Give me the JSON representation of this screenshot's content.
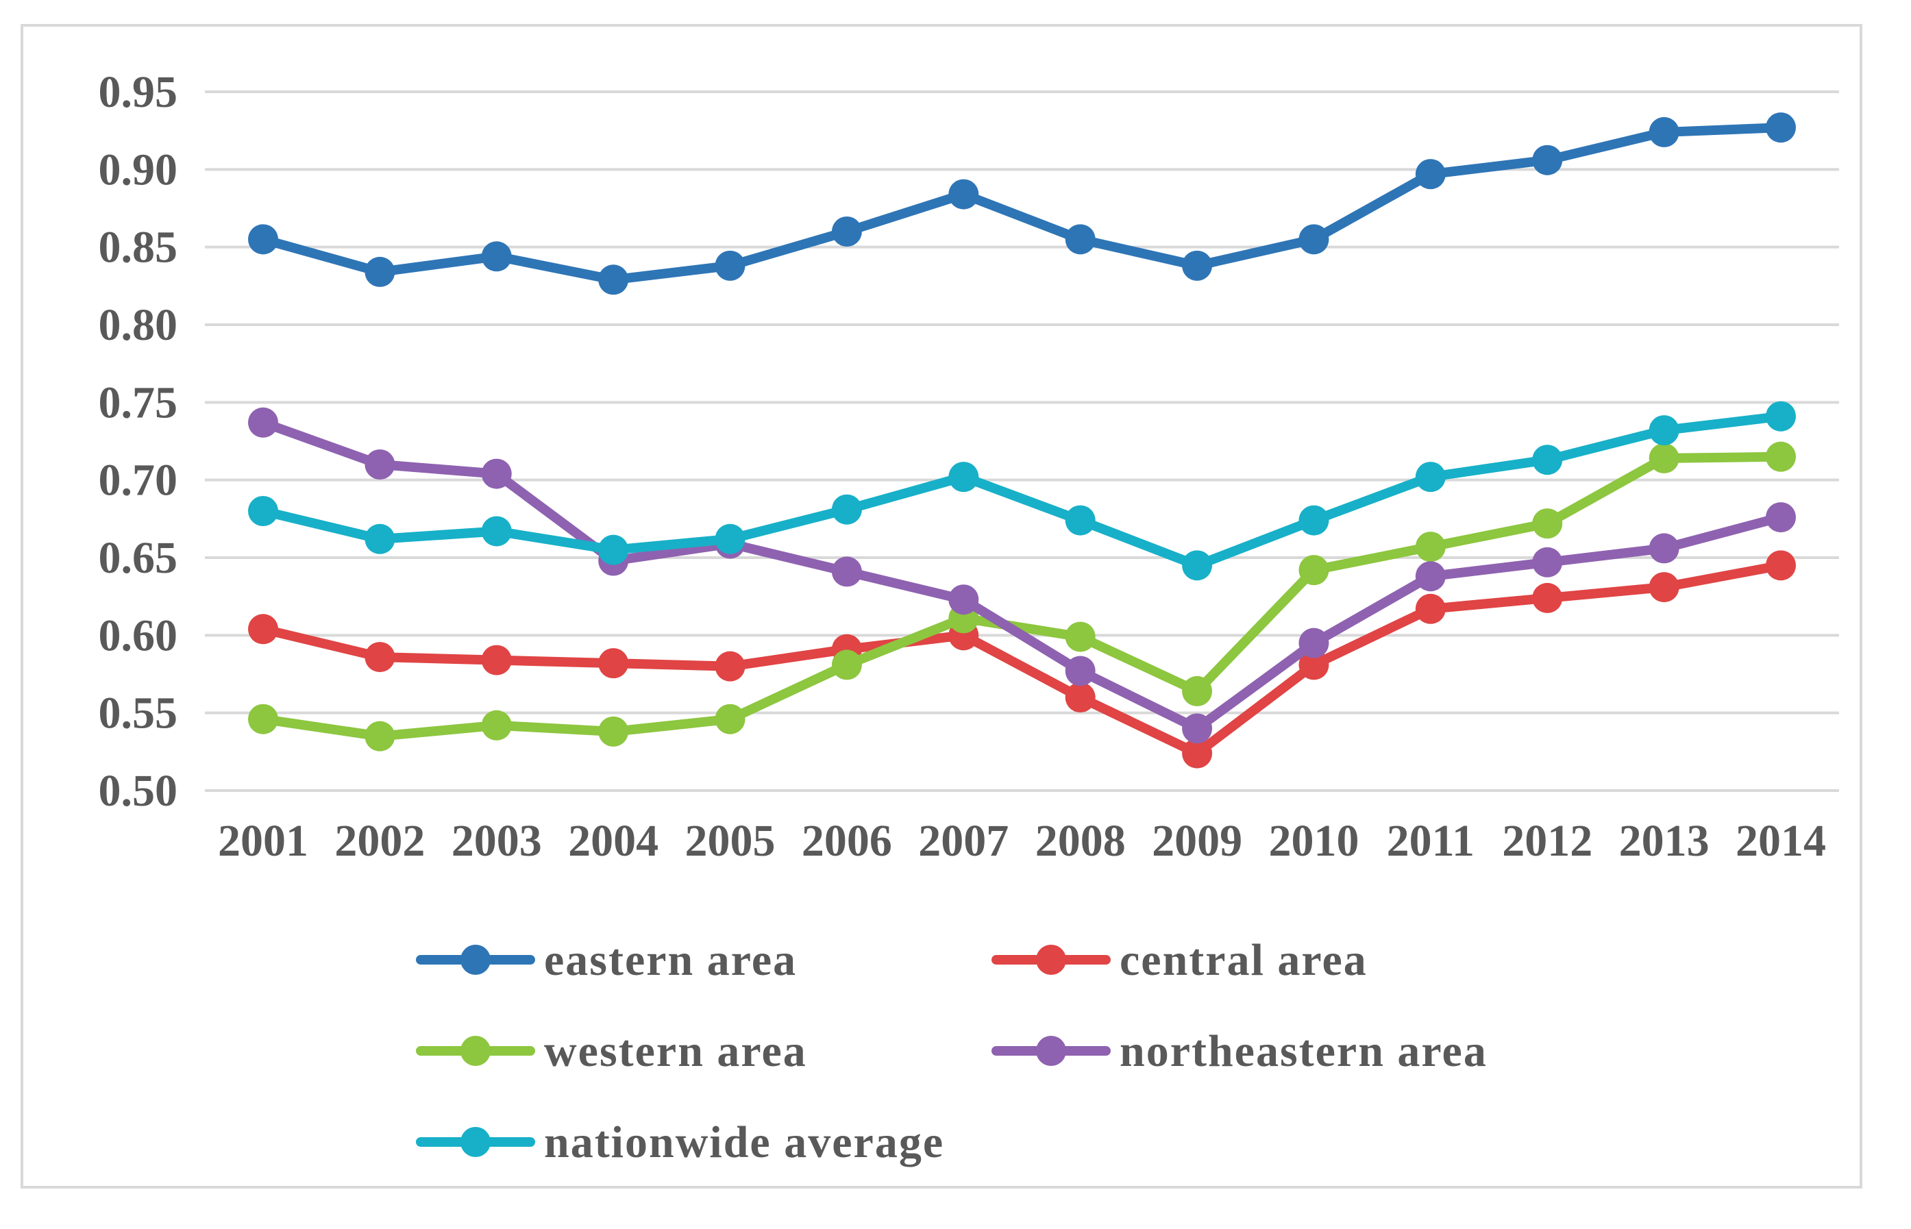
{
  "chart_data": {
    "type": "line",
    "title": "",
    "xlabel": "",
    "ylabel": "",
    "ylim": [
      0.5,
      0.95
    ],
    "y_ticks": [
      "0.50",
      "0.55",
      "0.60",
      "0.65",
      "0.70",
      "0.75",
      "0.80",
      "0.85",
      "0.90",
      "0.95"
    ],
    "y_tick_values": [
      0.5,
      0.55,
      0.6,
      0.65,
      0.7,
      0.75,
      0.8,
      0.85,
      0.9,
      0.95
    ],
    "categories": [
      "2001",
      "2002",
      "2003",
      "2004",
      "2005",
      "2006",
      "2007",
      "2008",
      "2009",
      "2010",
      "2011",
      "2012",
      "2013",
      "2014"
    ],
    "grid": true,
    "legend_position": "bottom",
    "series": [
      {
        "name": "eastern area",
        "color": "#2e75b6",
        "values": [
          0.855,
          0.834,
          0.844,
          0.829,
          0.838,
          0.86,
          0.884,
          0.855,
          0.838,
          0.855,
          0.897,
          0.906,
          0.924,
          0.927
        ]
      },
      {
        "name": "central area",
        "color": "#e04444",
        "values": [
          0.604,
          0.586,
          0.584,
          0.582,
          0.58,
          0.591,
          0.6,
          0.56,
          0.524,
          0.581,
          0.617,
          0.624,
          0.631,
          0.645
        ]
      },
      {
        "name": "western area",
        "color": "#8dc63f",
        "values": [
          0.546,
          0.535,
          0.542,
          0.538,
          0.546,
          0.581,
          0.611,
          0.599,
          0.564,
          0.642,
          0.657,
          0.672,
          0.714,
          0.715
        ]
      },
      {
        "name": "northeastern area",
        "color": "#8e62b0",
        "values": [
          0.737,
          0.71,
          0.704,
          0.648,
          0.659,
          0.641,
          0.623,
          0.577,
          0.54,
          0.595,
          0.638,
          0.647,
          0.656,
          0.676
        ]
      },
      {
        "name": "nationwide average",
        "color": "#17b0c8",
        "values": [
          0.68,
          0.662,
          0.667,
          0.655,
          0.662,
          0.681,
          0.702,
          0.674,
          0.645,
          0.674,
          0.702,
          0.713,
          0.732,
          0.741
        ]
      }
    ]
  }
}
